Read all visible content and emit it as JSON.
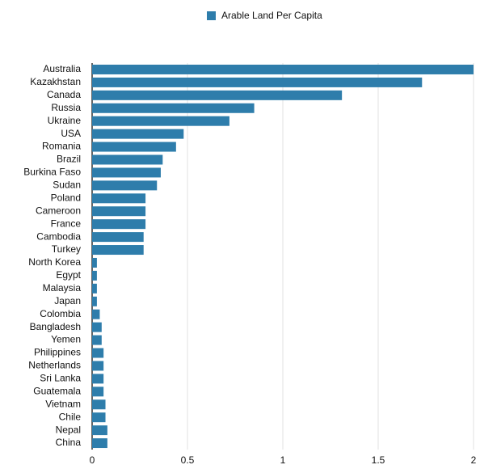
{
  "chart_data": {
    "type": "bar",
    "orientation": "horizontal",
    "categories": [
      "Australia",
      "Kazakhstan",
      "Canada",
      "Russia",
      "Ukraine",
      "USA",
      "Romania",
      "Brazil",
      "Burkina Faso",
      "Sudan",
      "Poland",
      "Cameroon",
      "France",
      "Cambodia",
      "Turkey",
      "North Korea",
      "Egypt",
      "Malaysia",
      "Japan",
      "Colombia",
      "Bangladesh",
      "Yemen",
      "Philippines",
      "Netherlands",
      "Sri Lanka",
      "Guatemala",
      "Vietnam",
      "Chile",
      "Nepal",
      "China"
    ],
    "series": [
      {
        "name": "Arable Land Per Capita",
        "color": "#2e7dab",
        "values": [
          2.0,
          1.73,
          1.31,
          0.85,
          0.72,
          0.48,
          0.44,
          0.37,
          0.36,
          0.34,
          0.28,
          0.28,
          0.28,
          0.27,
          0.27,
          0.025,
          0.025,
          0.025,
          0.025,
          0.04,
          0.05,
          0.05,
          0.06,
          0.06,
          0.06,
          0.06,
          0.07,
          0.07,
          0.08,
          0.08
        ]
      }
    ],
    "xlim": [
      0,
      2
    ],
    "xticks": [
      0,
      0.5,
      1,
      1.5,
      2
    ],
    "grid": true,
    "legend": "top"
  }
}
